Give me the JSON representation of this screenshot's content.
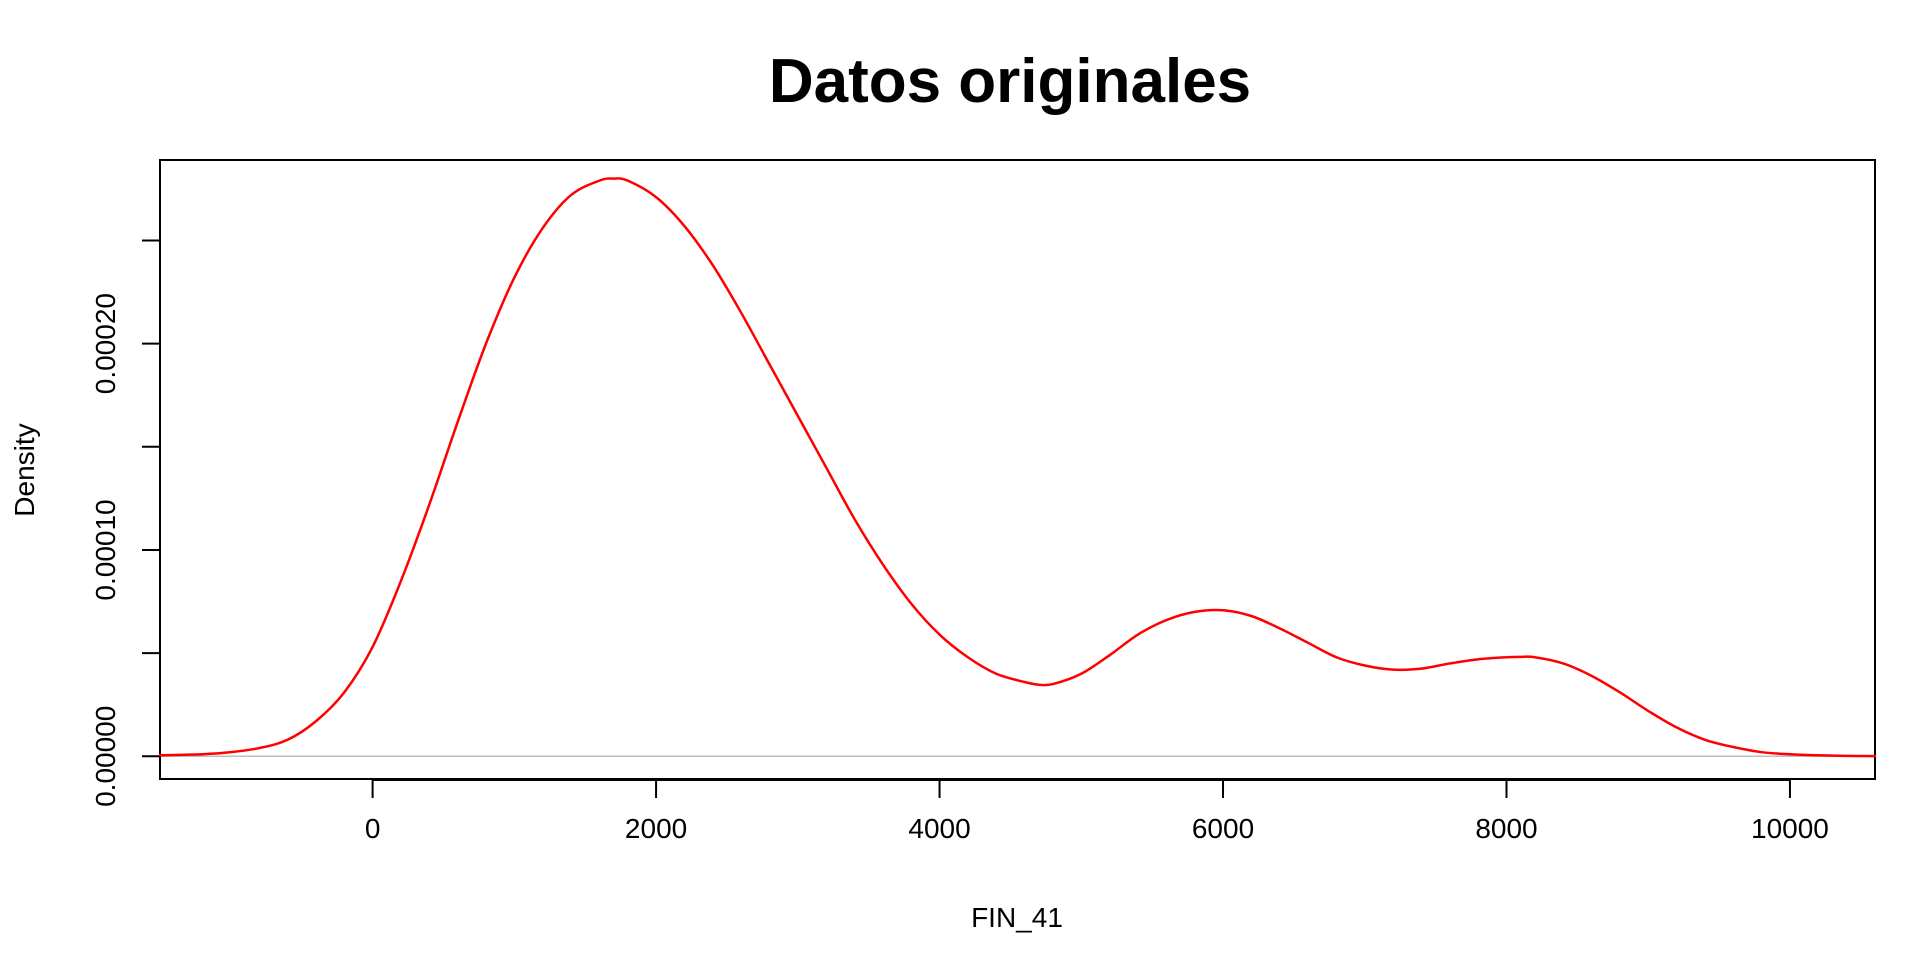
{
  "chart_data": {
    "type": "line",
    "title": "Datos originales",
    "xlabel": "FIN_41",
    "ylabel": "Density",
    "xlim": [
      -1500,
      10600
    ],
    "ylim": [
      -1.1e-05,
      0.000289
    ],
    "x_ticks": [
      0,
      2000,
      4000,
      6000,
      8000,
      10000
    ],
    "x_tick_labels": [
      "0",
      "2000",
      "4000",
      "6000",
      "8000",
      "10000"
    ],
    "y_ticks": [
      0.0,
      5e-05,
      0.0001,
      0.00015,
      0.0002,
      0.00025
    ],
    "y_tick_labels": [
      "0.00000",
      "",
      "0.00010",
      "",
      "0.00020",
      ""
    ],
    "grid": false,
    "baseline": 0,
    "colors": {
      "line": "#ff0000",
      "baseline": "#bebebe",
      "axes": "#000000"
    },
    "series": [
      {
        "x": [
          -1500,
          -1200,
          -1000,
          -800,
          -600,
          -400,
          -200,
          0,
          200,
          400,
          600,
          800,
          1000,
          1200,
          1400,
          1600,
          1700,
          1800,
          2000,
          2200,
          2400,
          2600,
          2800,
          3000,
          3200,
          3400,
          3600,
          3800,
          4000,
          4200,
          4400,
          4600,
          4700,
          4800,
          5000,
          5200,
          5400,
          5600,
          5800,
          6000,
          6200,
          6400,
          6600,
          6800,
          7000,
          7200,
          7400,
          7600,
          7800,
          8000,
          8100,
          8200,
          8400,
          8600,
          8800,
          9000,
          9200,
          9400,
          9600,
          9800,
          10000,
          10200,
          10400,
          10600
        ],
        "y": [
          5e-07,
          1e-06,
          2e-06,
          4e-06,
          8e-06,
          1.7e-05,
          3.1e-05,
          5.3e-05,
          8.5e-05,
          0.000122,
          0.000162,
          0.0002,
          0.000232,
          0.000256,
          0.000272,
          0.000279,
          0.00028,
          0.000279,
          0.000271,
          0.000257,
          0.000238,
          0.000215,
          0.00019,
          0.000165,
          0.00014,
          0.000115,
          9.3e-05,
          7.4e-05,
          5.9e-05,
          4.8e-05,
          4e-05,
          3.6e-05,
          3.47e-05,
          3.5e-05,
          4e-05,
          4.9e-05,
          5.9e-05,
          6.6e-05,
          7e-05,
          7.08e-05,
          6.8e-05,
          6.2e-05,
          5.5e-05,
          4.8e-05,
          4.4e-05,
          4.2e-05,
          4.25e-05,
          4.5e-05,
          4.7e-05,
          4.8e-05,
          4.82e-05,
          4.8e-05,
          4.5e-05,
          3.9e-05,
          3.1e-05,
          2.2e-05,
          1.4e-05,
          8e-06,
          4.5e-06,
          2e-06,
          1e-06,
          5e-07,
          2e-07,
          1e-07
        ]
      }
    ]
  }
}
